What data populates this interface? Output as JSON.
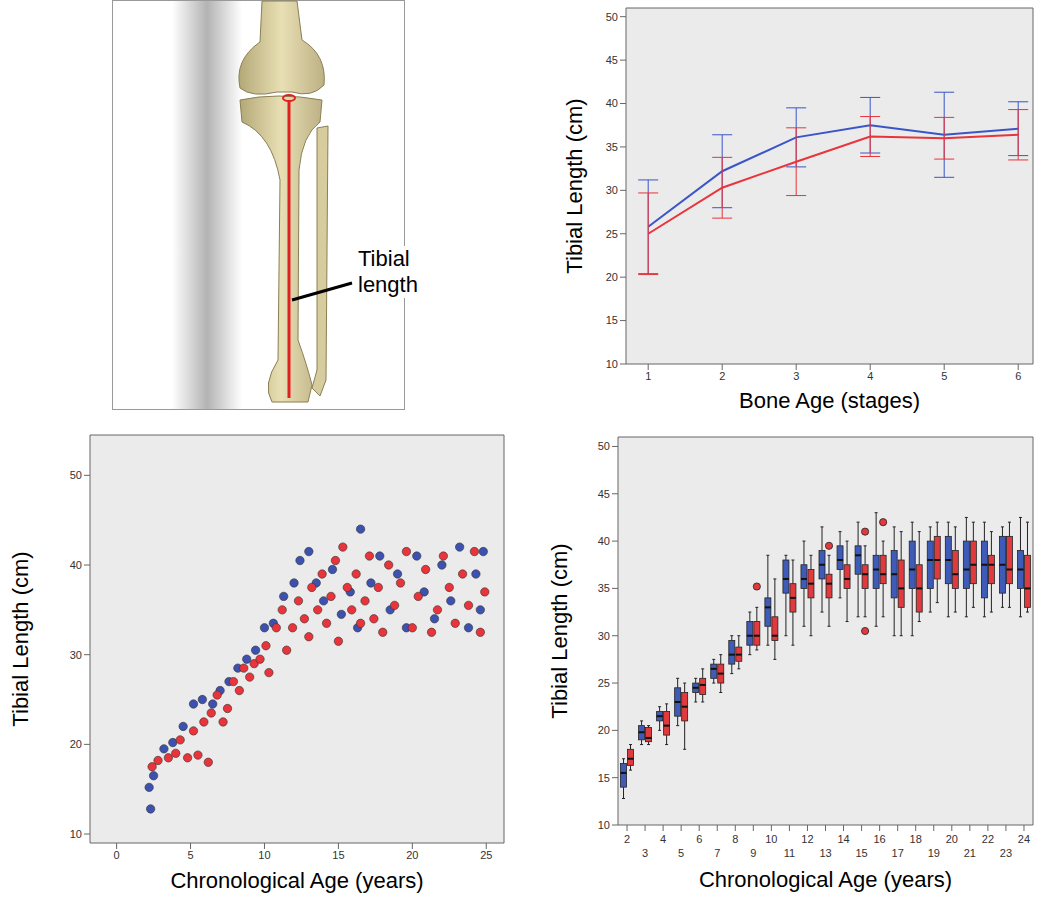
{
  "diagram": {
    "label": "Tibial length"
  },
  "chart_data": [
    {
      "type": "line",
      "xlabel": "Bone Age (stages)",
      "ylabel": "Tibial Length (cm)",
      "x": [
        1,
        2,
        3,
        4,
        5,
        6
      ],
      "xlim": [
        0.7,
        6.2
      ],
      "xticks": [
        1,
        2,
        3,
        4,
        5,
        6
      ],
      "ylim": [
        10,
        51
      ],
      "yticks": [
        10,
        15,
        20,
        25,
        30,
        35,
        40,
        45,
        50
      ],
      "grid": false,
      "series": [
        {
          "color": "#3a55c8",
          "values": [
            25.8,
            32.2,
            36.1,
            37.5,
            36.4,
            37.1
          ],
          "error": [
            5.4,
            4.2,
            3.4,
            3.2,
            4.9,
            3.1
          ]
        },
        {
          "color": "#e8343a",
          "values": [
            25.0,
            30.3,
            33.3,
            36.2,
            36.0,
            36.4
          ],
          "error": [
            4.7,
            3.5,
            3.9,
            2.3,
            2.4,
            2.9
          ]
        }
      ]
    },
    {
      "type": "scatter",
      "xlabel": "Chronological Age (years)",
      "ylabel": "Tibial Length (cm)",
      "xlim": [
        -1.8,
        26.2
      ],
      "xticks": [
        0,
        5,
        10,
        15,
        20,
        25
      ],
      "ylim": [
        9,
        54.5
      ],
      "yticks": [
        10,
        20,
        30,
        40,
        50
      ],
      "grid": false,
      "marker": "circle",
      "series": [
        {
          "color": "#3d52b0",
          "x": [
            2.2,
            2.3,
            2.5,
            3.2,
            3.8,
            4.5,
            5.2,
            5.8,
            6.5,
            7,
            7.6,
            8.2,
            8.8,
            9.4,
            10,
            10.6,
            11.3,
            12,
            12.4,
            13,
            13.5,
            14,
            14.6,
            15.2,
            15.8,
            16.5,
            16.3,
            17.2,
            17.8,
            18.5,
            19,
            19.6,
            20.3,
            20.8,
            21.5,
            22,
            22.6,
            23.2,
            23.8,
            24.3,
            24.8,
            24.6
          ],
          "values": [
            15.2,
            12.8,
            16.5,
            19.5,
            20.2,
            22,
            24.5,
            25,
            24.5,
            26,
            27,
            28.5,
            29.5,
            30.5,
            33,
            33.5,
            36.5,
            38,
            40.5,
            41.5,
            38,
            36,
            39.5,
            34.5,
            37,
            44,
            33,
            38,
            41,
            35,
            39,
            33,
            41,
            37,
            34,
            40,
            36,
            42,
            33,
            39,
            41.5,
            35
          ]
        },
        {
          "color": "#e8343a",
          "x": [
            2.4,
            2.8,
            3.5,
            4,
            4.3,
            4.8,
            5.2,
            5.5,
            5.9,
            6.2,
            6.4,
            6.8,
            7.2,
            7.5,
            7.9,
            8.3,
            8.6,
            9,
            9.3,
            9.7,
            10.1,
            10.3,
            10.8,
            11.2,
            11.5,
            11.9,
            12.3,
            12.7,
            13,
            13.2,
            13.6,
            13.9,
            14.2,
            14.5,
            14.8,
            15,
            15.3,
            15.6,
            15.9,
            16.2,
            16.5,
            16.8,
            17.1,
            17.4,
            17.7,
            18,
            18.4,
            18.8,
            19.2,
            19.6,
            20,
            20.4,
            20.9,
            21.3,
            21.7,
            22.1,
            22.5,
            22.9,
            23.4,
            23.8,
            24.2,
            24.6,
            24.9
          ],
          "values": [
            17.5,
            18.2,
            18.5,
            19,
            20.5,
            18.5,
            21.5,
            18.8,
            22.5,
            18,
            23.5,
            25.5,
            22.5,
            24,
            27,
            26,
            28.5,
            27.5,
            29,
            29.5,
            31,
            28,
            33,
            35,
            30.5,
            33,
            36,
            34,
            32,
            37.5,
            35,
            39,
            33.5,
            36.5,
            40.5,
            31.5,
            42,
            37.5,
            35,
            39,
            33.5,
            36,
            41,
            34,
            37.5,
            32.5,
            40,
            35.5,
            38,
            41.5,
            33,
            36.5,
            39.5,
            32.5,
            35,
            41,
            37.5,
            33.5,
            39,
            35.5,
            41.5,
            32.5,
            37
          ]
        }
      ]
    },
    {
      "type": "box",
      "xlabel": "Chronological Age (years)",
      "ylabel": "Tibial Length (cm)",
      "categories": [
        2,
        3,
        4,
        5,
        6,
        7,
        8,
        9,
        10,
        11,
        12,
        13,
        14,
        15,
        16,
        17,
        18,
        19,
        20,
        21,
        22,
        23,
        24
      ],
      "ylim": [
        10,
        51
      ],
      "yticks": [
        10,
        15,
        20,
        25,
        30,
        35,
        40,
        45,
        50
      ],
      "grid": false,
      "series": [
        {
          "color": "#3f5bb8",
          "min": [
            12.8,
            18.5,
            20,
            20.5,
            23,
            25,
            26,
            28,
            29,
            30,
            31,
            32.5,
            34,
            32,
            31,
            30,
            30,
            32.5,
            32,
            32,
            32,
            33,
            32
          ],
          "q1": [
            14,
            19,
            21,
            21.5,
            24,
            25.5,
            27,
            29,
            31,
            34.5,
            35,
            36,
            37,
            36.5,
            35,
            34,
            35,
            35,
            35.5,
            35,
            34,
            34.5,
            35
          ],
          "median": [
            15.5,
            19.8,
            21.5,
            23,
            24.5,
            26.5,
            28,
            30,
            33,
            36,
            36,
            37.5,
            38,
            38.5,
            37,
            36.5,
            37,
            38,
            38,
            37,
            37.5,
            37.5,
            37
          ],
          "q3": [
            16.5,
            20.5,
            22,
            24.5,
            25,
            27,
            29.5,
            31.5,
            34,
            38,
            37.5,
            39,
            39.5,
            39.5,
            38.5,
            39,
            40,
            40,
            40.5,
            40,
            40,
            40.5,
            39
          ],
          "max": [
            17,
            21,
            22.5,
            25.5,
            25.5,
            27.5,
            30,
            32.5,
            38.5,
            38.5,
            40,
            41.5,
            41,
            42,
            43,
            41.5,
            42,
            41.5,
            42,
            42.5,
            42,
            41.5,
            42.5
          ]
        },
        {
          "color": "#e03a3e",
          "min": [
            15.8,
            18.5,
            18.5,
            18,
            23,
            24,
            26.5,
            28.5,
            27.5,
            29,
            30,
            31,
            31.5,
            32,
            32,
            30,
            31.5,
            33.5,
            32.5,
            33,
            32.5,
            33,
            32.5
          ],
          "q1": [
            16.3,
            18.8,
            19.5,
            21,
            23.8,
            25,
            27.3,
            29,
            29.5,
            32.5,
            34,
            34,
            35,
            35,
            35.5,
            33,
            32.5,
            36,
            35,
            35.5,
            35.5,
            35.5,
            33
          ],
          "median": [
            17,
            19.2,
            20.5,
            22.5,
            24.8,
            26,
            28,
            30,
            30,
            34,
            35.5,
            35.5,
            36,
            36.5,
            36.5,
            35,
            35,
            38,
            36.5,
            37.5,
            37.5,
            37,
            35
          ],
          "q3": [
            18,
            20.3,
            22,
            24,
            25.5,
            27,
            28.8,
            31.5,
            32,
            35.5,
            37,
            36.5,
            37.5,
            37.5,
            38.5,
            38,
            37.5,
            40.5,
            39,
            40,
            38.5,
            40.5,
            38.5
          ],
          "max": [
            18.5,
            20.5,
            22.8,
            25,
            26.5,
            28,
            30,
            33,
            36,
            38,
            38.5,
            38.5,
            40,
            39.5,
            40,
            41,
            41,
            42,
            41.5,
            42,
            41,
            42,
            42
          ],
          "outliers": {
            "x": [
              9,
              13,
              15,
              15,
              16
            ],
            "values": [
              35.2,
              39.5,
              41,
              30.5,
              42
            ]
          }
        }
      ]
    }
  ]
}
